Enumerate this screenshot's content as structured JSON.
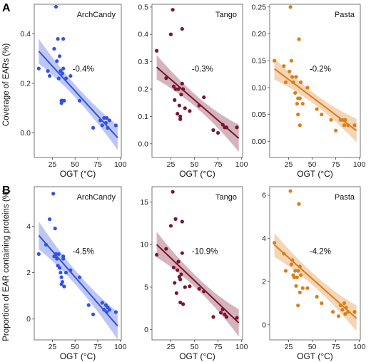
{
  "colors": {
    "ArchCandy": "#3352e0",
    "Tango": "#7a1530",
    "Pasta": "#dc7d18"
  },
  "row_labels": [
    "A",
    "B"
  ],
  "y_axis_labels": [
    "Coverage of EARs (%)",
    "Proportion of EAR containing proteins (%)"
  ],
  "chart_data": [
    {
      "type": "scatter",
      "row": 0,
      "col": 0,
      "title": "ArchCandy",
      "annotation": "-0.4%",
      "xlabel": "OGT (°C)",
      "ylabel": "Coverage of EARs (%)",
      "xlim": [
        5,
        101
      ],
      "ylim": [
        -0.1,
        0.52
      ],
      "xticks": [
        25,
        50,
        75,
        100
      ],
      "yticks": [
        0.0,
        0.2,
        0.4
      ],
      "ytick_labels": [
        "0.0",
        "0.2",
        "0.4"
      ],
      "fit": {
        "x": [
          10,
          97
        ],
        "y": [
          0.33,
          -0.02
        ],
        "ci": [
          0.05,
          0.025,
          0.05
        ]
      },
      "points": [
        [
          10,
          0.26
        ],
        [
          20,
          0.25
        ],
        [
          22,
          0.23
        ],
        [
          27,
          0.34
        ],
        [
          29,
          0.51
        ],
        [
          30,
          0.29
        ],
        [
          31,
          0.38
        ],
        [
          32,
          0.22
        ],
        [
          33,
          0.31
        ],
        [
          34,
          0.25
        ],
        [
          35,
          0.13
        ],
        [
          35,
          0.12
        ],
        [
          36,
          0.24
        ],
        [
          36,
          0.13
        ],
        [
          37,
          0.38
        ],
        [
          37,
          0.26
        ],
        [
          38,
          0.13
        ],
        [
          40,
          0.22
        ],
        [
          45,
          0.23
        ],
        [
          55,
          0.13
        ],
        [
          70,
          0.02
        ],
        [
          78,
          0.05
        ],
        [
          80,
          0.03
        ],
        [
          82,
          0.06
        ],
        [
          84,
          0.04
        ],
        [
          85,
          0.06
        ],
        [
          86,
          0.02
        ],
        [
          88,
          0.05
        ],
        [
          95,
          0.03
        ]
      ]
    },
    {
      "type": "scatter",
      "row": 0,
      "col": 1,
      "title": "Tango",
      "annotation": "-0.3%",
      "xlabel": "OGT (°C)",
      "ylabel": "",
      "xlim": [
        5,
        101
      ],
      "ylim": [
        -0.05,
        0.51
      ],
      "xticks": [
        25,
        50,
        75,
        100
      ],
      "yticks": [
        0.0,
        0.1,
        0.2,
        0.3,
        0.4,
        0.5
      ],
      "ytick_labels": [
        "0.0",
        "0.1",
        "0.2",
        "0.3",
        "0.4",
        "0.5"
      ],
      "fit": {
        "x": [
          10,
          97
        ],
        "y": [
          0.28,
          0.02
        ],
        "ci": [
          0.045,
          0.022,
          0.05
        ]
      },
      "points": [
        [
          10,
          0.34
        ],
        [
          20,
          0.24
        ],
        [
          25,
          0.4
        ],
        [
          27,
          0.49
        ],
        [
          28,
          0.21
        ],
        [
          29,
          0.16
        ],
        [
          30,
          0.2
        ],
        [
          32,
          0.11
        ],
        [
          33,
          0.2
        ],
        [
          34,
          0.14
        ],
        [
          35,
          0.1
        ],
        [
          35,
          0.09
        ],
        [
          36,
          0.18
        ],
        [
          37,
          0.42
        ],
        [
          37,
          0.22
        ],
        [
          38,
          0.2
        ],
        [
          40,
          0.13
        ],
        [
          45,
          0.12
        ],
        [
          55,
          0.14
        ],
        [
          60,
          0.17
        ],
        [
          70,
          0.05
        ],
        [
          75,
          0.04
        ],
        [
          80,
          0.07
        ],
        [
          82,
          0.06
        ],
        [
          84,
          0.06
        ],
        [
          95,
          0.06
        ]
      ]
    },
    {
      "type": "scatter",
      "row": 0,
      "col": 2,
      "title": "Pasta",
      "annotation": "-0.2%",
      "xlabel": "OGT (°C)",
      "ylabel": "",
      "xlim": [
        5,
        101
      ],
      "ylim": [
        -0.03,
        0.255
      ],
      "xticks": [
        25,
        50,
        75,
        100
      ],
      "yticks": [
        0.0,
        0.05,
        0.1,
        0.15,
        0.2,
        0.25
      ],
      "ytick_labels": [
        "0.00",
        "0.05",
        "0.10",
        "0.15",
        "0.20",
        "0.25"
      ],
      "fit": {
        "x": [
          10,
          97
        ],
        "y": [
          0.135,
          0.02
        ],
        "ci": [
          0.02,
          0.01,
          0.022
        ]
      },
      "points": [
        [
          10,
          0.15
        ],
        [
          20,
          0.14
        ],
        [
          22,
          0.11
        ],
        [
          26,
          0.13
        ],
        [
          27,
          0.25
        ],
        [
          28,
          0.15
        ],
        [
          29,
          0.12
        ],
        [
          30,
          0.11
        ],
        [
          32,
          0.09
        ],
        [
          33,
          0.12
        ],
        [
          34,
          0.07
        ],
        [
          35,
          0.05
        ],
        [
          35,
          0.08
        ],
        [
          36,
          0.19
        ],
        [
          37,
          0.03
        ],
        [
          37,
          0.08
        ],
        [
          38,
          0.11
        ],
        [
          40,
          0.07
        ],
        [
          45,
          0.1
        ],
        [
          55,
          0.06
        ],
        [
          60,
          0.05
        ],
        [
          70,
          0.04
        ],
        [
          75,
          0.02
        ],
        [
          80,
          0.04
        ],
        [
          82,
          0.04
        ],
        [
          84,
          0.03
        ],
        [
          85,
          0.04
        ],
        [
          88,
          0.03
        ],
        [
          95,
          0.03
        ]
      ]
    },
    {
      "type": "scatter",
      "row": 1,
      "col": 0,
      "title": "ArchCandy",
      "annotation": "-4.5%",
      "xlabel": "OGT (°C)",
      "ylabel": "Proportion of EAR containing proteins (%)",
      "xlim": [
        5,
        101
      ],
      "ylim": [
        -0.9,
        5.7
      ],
      "xticks": [
        25,
        50,
        75,
        100
      ],
      "yticks": [
        0,
        2,
        4
      ],
      "ytick_labels": [
        "0",
        "2",
        "4"
      ],
      "fit": {
        "x": [
          10,
          97
        ],
        "y": [
          3.6,
          -0.3
        ],
        "ci": [
          0.6,
          0.3,
          0.6
        ]
      },
      "points": [
        [
          10,
          2.8
        ],
        [
          18,
          3.2
        ],
        [
          22,
          4.3
        ],
        [
          26,
          5.4
        ],
        [
          27,
          2.7
        ],
        [
          28,
          3.9
        ],
        [
          29,
          2.8
        ],
        [
          30,
          2.6
        ],
        [
          31,
          2.3
        ],
        [
          32,
          2.8
        ],
        [
          33,
          2.2
        ],
        [
          34,
          2.0
        ],
        [
          35,
          1.5
        ],
        [
          35,
          1.8
        ],
        [
          36,
          1.6
        ],
        [
          37,
          2.6
        ],
        [
          37,
          2.7
        ],
        [
          38,
          1.4
        ],
        [
          40,
          2.0
        ],
        [
          45,
          2.1
        ],
        [
          55,
          1.8
        ],
        [
          65,
          0.6
        ],
        [
          70,
          0.2
        ],
        [
          80,
          0.7
        ],
        [
          82,
          0.4
        ],
        [
          84,
          0.6
        ],
        [
          85,
          0.3
        ],
        [
          86,
          0.5
        ],
        [
          88,
          0.4
        ],
        [
          95,
          0.3
        ]
      ]
    },
    {
      "type": "scatter",
      "row": 1,
      "col": 1,
      "title": "Tango",
      "annotation": "-10.9%",
      "xlabel": "OGT (°C)",
      "ylabel": "",
      "xlim": [
        5,
        101
      ],
      "ylim": [
        -1.2,
        16.8
      ],
      "xticks": [
        25,
        50,
        75,
        100
      ],
      "yticks": [
        0,
        5,
        10,
        15
      ],
      "ytick_labels": [
        "0",
        "5",
        "10",
        "15"
      ],
      "fit": {
        "x": [
          10,
          97
        ],
        "y": [
          10.0,
          0.8
        ],
        "ci": [
          1.5,
          0.7,
          1.6
        ]
      },
      "points": [
        [
          10,
          8.8
        ],
        [
          20,
          9.5
        ],
        [
          25,
          12.2
        ],
        [
          27,
          16.2
        ],
        [
          28,
          7.3
        ],
        [
          29,
          5.5
        ],
        [
          30,
          13.0
        ],
        [
          31,
          4.3
        ],
        [
          32,
          7.0
        ],
        [
          33,
          8.0
        ],
        [
          34,
          6.2
        ],
        [
          35,
          5.9
        ],
        [
          35,
          3.2
        ],
        [
          36,
          6.5
        ],
        [
          37,
          12.7
        ],
        [
          37,
          9.0
        ],
        [
          38,
          3.0
        ],
        [
          40,
          5.0
        ],
        [
          45,
          5.1
        ],
        [
          55,
          4.8
        ],
        [
          60,
          4.5
        ],
        [
          70,
          1.5
        ],
        [
          78,
          2.0
        ],
        [
          80,
          2.4
        ],
        [
          82,
          1.8
        ],
        [
          84,
          1.5
        ],
        [
          95,
          1.4
        ]
      ]
    },
    {
      "type": "scatter",
      "row": 1,
      "col": 2,
      "title": "Pasta",
      "annotation": "-4.2%",
      "xlabel": "OGT (°C)",
      "ylabel": "",
      "xlim": [
        5,
        101
      ],
      "ylim": [
        -0.7,
        6.4
      ],
      "xticks": [
        25,
        50,
        75,
        100
      ],
      "yticks": [
        0,
        2,
        4,
        6
      ],
      "ytick_labels": [
        "0",
        "2",
        "4",
        "6"
      ],
      "fit": {
        "x": [
          10,
          97
        ],
        "y": [
          3.7,
          0.3
        ],
        "ci": [
          0.55,
          0.28,
          0.6
        ]
      },
      "points": [
        [
          10,
          3.8
        ],
        [
          20,
          3.3
        ],
        [
          22,
          2.5
        ],
        [
          27,
          6.2
        ],
        [
          28,
          2.8
        ],
        [
          29,
          3.0
        ],
        [
          30,
          2.3
        ],
        [
          31,
          2.2
        ],
        [
          32,
          2.5
        ],
        [
          33,
          1.8
        ],
        [
          34,
          2.2
        ],
        [
          35,
          0.9
        ],
        [
          35,
          2.5
        ],
        [
          36,
          5.6
        ],
        [
          37,
          1.5
        ],
        [
          37,
          2.7
        ],
        [
          38,
          2.3
        ],
        [
          40,
          1.7
        ],
        [
          45,
          1.7
        ],
        [
          55,
          1.3
        ],
        [
          60,
          1.0
        ],
        [
          72,
          0.6
        ],
        [
          78,
          0.4
        ],
        [
          80,
          0.9
        ],
        [
          82,
          0.7
        ],
        [
          84,
          1.0
        ],
        [
          85,
          0.5
        ],
        [
          86,
          0.8
        ],
        [
          88,
          0.6
        ],
        [
          95,
          0.6
        ]
      ]
    }
  ]
}
